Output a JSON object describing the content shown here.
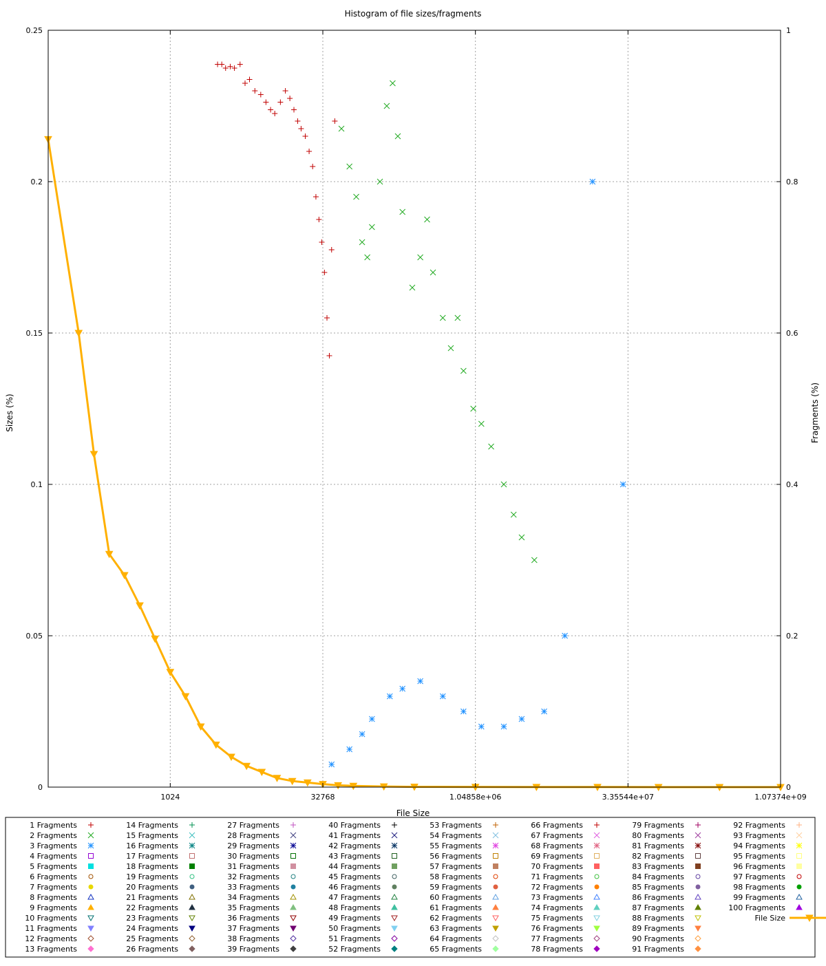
{
  "chart_data": {
    "type": "scatter",
    "title": "Histogram of file sizes/fragments",
    "xlabel": "File Size",
    "ylabel": "Sizes (%)",
    "y2label": "Fragments (%)",
    "x_scale": "log2",
    "x_ticks": [
      "1024",
      "32768",
      "1.04858e+06",
      "3.35544e+07",
      "1.07374e+09"
    ],
    "x_tick_values": [
      1024,
      32768,
      1048576,
      33554432,
      1073741824
    ],
    "xlim": [
      64,
      1073741824
    ],
    "y_ticks": [
      "0",
      "0.05",
      "0.1",
      "0.15",
      "0.2",
      "0.25"
    ],
    "ylim": [
      0,
      0.25
    ],
    "y2_ticks": [
      "0",
      "0.2",
      "0.4",
      "0.6",
      "0.8",
      "1"
    ],
    "y2lim": [
      0,
      1
    ],
    "grid": true,
    "legend_position": "bottom",
    "legend_columns": 8,
    "legend": [
      {
        "label": "1 Fragments",
        "color": "#c00000",
        "marker": "plus"
      },
      {
        "label": "2 Fragments",
        "color": "#22aa22",
        "marker": "cross"
      },
      {
        "label": "3 Fragments",
        "color": "#1e90ff",
        "marker": "star"
      },
      {
        "label": "4 Fragments",
        "color": "#9400d3",
        "marker": "square-open"
      },
      {
        "label": "5 Fragments",
        "color": "#00e0e0",
        "marker": "square"
      },
      {
        "label": "6 Fragments",
        "color": "#a05000",
        "marker": "circle-open"
      },
      {
        "label": "7 Fragments",
        "color": "#e8d800",
        "marker": "circle"
      },
      {
        "label": "8 Fragments",
        "color": "#1030c0",
        "marker": "tri-up-open"
      },
      {
        "label": "9 Fragments",
        "color": "#ffb000",
        "marker": "tri-up"
      },
      {
        "label": "10 Fragments",
        "color": "#007070",
        "marker": "tri-down-open"
      },
      {
        "label": "11 Fragments",
        "color": "#8080ff",
        "marker": "tri-down"
      },
      {
        "label": "12 Fragments",
        "color": "#a05030",
        "marker": "diamond-open"
      },
      {
        "label": "13 Fragments",
        "color": "#ff70d0",
        "marker": "diamond"
      },
      {
        "label": "14 Fragments",
        "color": "#009050",
        "marker": "plus"
      },
      {
        "label": "15 Fragments",
        "color": "#40c0c0",
        "marker": "cross"
      },
      {
        "label": "16 Fragments",
        "color": "#008080",
        "marker": "star"
      },
      {
        "label": "17 Fragments",
        "color": "#c07070",
        "marker": "square-open"
      },
      {
        "label": "18 Fragments",
        "color": "#008000",
        "marker": "square"
      },
      {
        "label": "19 Fragments",
        "color": "#30c080",
        "marker": "circle-open"
      },
      {
        "label": "20 Fragments",
        "color": "#406080",
        "marker": "circle"
      },
      {
        "label": "21 Fragments",
        "color": "#807000",
        "marker": "tri-up-open"
      },
      {
        "label": "22 Fragments",
        "color": "#203040",
        "marker": "tri-up"
      },
      {
        "label": "23 Fragments",
        "color": "#608000",
        "marker": "tri-down-open"
      },
      {
        "label": "24 Fragments",
        "color": "#000080",
        "marker": "tri-down"
      },
      {
        "label": "25 Fragments",
        "color": "#906030",
        "marker": "diamond-open"
      },
      {
        "label": "26 Fragments",
        "color": "#806060",
        "marker": "diamond"
      },
      {
        "label": "27 Fragments",
        "color": "#c050c0",
        "marker": "plus"
      },
      {
        "label": "28 Fragments",
        "color": "#404080",
        "marker": "cross"
      },
      {
        "label": "29 Fragments",
        "color": "#000090",
        "marker": "star"
      },
      {
        "label": "30 Fragments",
        "color": "#007000",
        "marker": "square-open"
      },
      {
        "label": "31 Fragments",
        "color": "#d090a0",
        "marker": "square"
      },
      {
        "label": "32 Fragments",
        "color": "#208080",
        "marker": "circle-open"
      },
      {
        "label": "33 Fragments",
        "color": "#2080a0",
        "marker": "circle"
      },
      {
        "label": "34 Fragments",
        "color": "#a09000",
        "marker": "tri-up-open"
      },
      {
        "label": "35 Fragments",
        "color": "#80c080",
        "marker": "tri-up"
      },
      {
        "label": "36 Fragments",
        "color": "#900000",
        "marker": "tri-down-open"
      },
      {
        "label": "37 Fragments",
        "color": "#700070",
        "marker": "tri-down"
      },
      {
        "label": "38 Fragments",
        "color": "#5030a0",
        "marker": "diamond-open"
      },
      {
        "label": "39 Fragments",
        "color": "#404040",
        "marker": "diamond"
      },
      {
        "label": "40 Fragments",
        "color": "#000000",
        "marker": "plus"
      },
      {
        "label": "41 Fragments",
        "color": "#202080",
        "marker": "cross"
      },
      {
        "label": "42 Fragments",
        "color": "#003060",
        "marker": "star"
      },
      {
        "label": "43 Fragments",
        "color": "#206020",
        "marker": "square-open"
      },
      {
        "label": "44 Fragments",
        "color": "#70a060",
        "marker": "square"
      },
      {
        "label": "45 Fragments",
        "color": "#406060",
        "marker": "circle-open"
      },
      {
        "label": "46 Fragments",
        "color": "#608060",
        "marker": "circle"
      },
      {
        "label": "47 Fragments",
        "color": "#208040",
        "marker": "tri-up-open"
      },
      {
        "label": "48 Fragments",
        "color": "#40c0a0",
        "marker": "tri-up"
      },
      {
        "label": "49 Fragments",
        "color": "#a02020",
        "marker": "tri-down-open"
      },
      {
        "label": "50 Fragments",
        "color": "#80d0f0",
        "marker": "tri-down"
      },
      {
        "label": "51 Fragments",
        "color": "#8000a0",
        "marker": "diamond-open"
      },
      {
        "label": "52 Fragments",
        "color": "#008080",
        "marker": "diamond"
      },
      {
        "label": "53 Fragments",
        "color": "#c06000",
        "marker": "plus"
      },
      {
        "label": "54 Fragments",
        "color": "#80c0e0",
        "marker": "cross"
      },
      {
        "label": "55 Fragments",
        "color": "#e040e0",
        "marker": "star"
      },
      {
        "label": "56 Fragments",
        "color": "#c08000",
        "marker": "square-open"
      },
      {
        "label": "57 Fragments",
        "color": "#c08060",
        "marker": "square"
      },
      {
        "label": "58 Fragments",
        "color": "#e04000",
        "marker": "circle-open"
      },
      {
        "label": "59 Fragments",
        "color": "#e06040",
        "marker": "circle"
      },
      {
        "label": "60 Fragments",
        "color": "#60a0e0",
        "marker": "tri-up-open"
      },
      {
        "label": "61 Fragments",
        "color": "#ff8040",
        "marker": "tri-up"
      },
      {
        "label": "62 Fragments",
        "color": "#ff6060",
        "marker": "tri-down-open"
      },
      {
        "label": "63 Fragments",
        "color": "#c0a000",
        "marker": "tri-down"
      },
      {
        "label": "64 Fragments",
        "color": "#c0c0c0",
        "marker": "diamond-open"
      },
      {
        "label": "65 Fragments",
        "color": "#a0ffa0",
        "marker": "diamond"
      },
      {
        "label": "66 Fragments",
        "color": "#c00000",
        "marker": "plus"
      },
      {
        "label": "67 Fragments",
        "color": "#e060e0",
        "marker": "cross"
      },
      {
        "label": "68 Fragments",
        "color": "#e06080",
        "marker": "star"
      },
      {
        "label": "69 Fragments",
        "color": "#e0b060",
        "marker": "square-open"
      },
      {
        "label": "70 Fragments",
        "color": "#ff6060",
        "marker": "square"
      },
      {
        "label": "71 Fragments",
        "color": "#40c040",
        "marker": "circle-open"
      },
      {
        "label": "72 Fragments",
        "color": "#ff8000",
        "marker": "circle"
      },
      {
        "label": "73 Fragments",
        "color": "#4080ff",
        "marker": "tri-up-open"
      },
      {
        "label": "74 Fragments",
        "color": "#60d0c0",
        "marker": "tri-up"
      },
      {
        "label": "75 Fragments",
        "color": "#80d0e0",
        "marker": "tri-down-open"
      },
      {
        "label": "76 Fragments",
        "color": "#a0ff40",
        "marker": "tri-down"
      },
      {
        "label": "77 Fragments",
        "color": "#a04080",
        "marker": "diamond-open"
      },
      {
        "label": "78 Fragments",
        "color": "#a000c0",
        "marker": "diamond"
      },
      {
        "label": "79 Fragments",
        "color": "#a00060",
        "marker": "plus"
      },
      {
        "label": "80 Fragments",
        "color": "#a040a0",
        "marker": "cross"
      },
      {
        "label": "81 Fragments",
        "color": "#800000",
        "marker": "star"
      },
      {
        "label": "82 Fragments",
        "color": "#604040",
        "marker": "square-open"
      },
      {
        "label": "83 Fragments",
        "color": "#804020",
        "marker": "square"
      },
      {
        "label": "84 Fragments",
        "color": "#6040a0",
        "marker": "circle-open"
      },
      {
        "label": "85 Fragments",
        "color": "#8060a0",
        "marker": "circle"
      },
      {
        "label": "86 Fragments",
        "color": "#6040c0",
        "marker": "tri-up-open"
      },
      {
        "label": "87 Fragments",
        "color": "#608000",
        "marker": "tri-up"
      },
      {
        "label": "88 Fragments",
        "color": "#c0c000",
        "marker": "tri-down-open"
      },
      {
        "label": "89 Fragments",
        "color": "#ff8040",
        "marker": "tri-down"
      },
      {
        "label": "90 Fragments",
        "color": "#ffa040",
        "marker": "diamond-open"
      },
      {
        "label": "91 Fragments",
        "color": "#ff9040",
        "marker": "diamond"
      },
      {
        "label": "92 Fragments",
        "color": "#ffb080",
        "marker": "plus"
      },
      {
        "label": "93 Fragments",
        "color": "#ffd0a0",
        "marker": "cross"
      },
      {
        "label": "94 Fragments",
        "color": "#ffff00",
        "marker": "star"
      },
      {
        "label": "95 Fragments",
        "color": "#ffff80",
        "marker": "square-open"
      },
      {
        "label": "96 Fragments",
        "color": "#ffffa0",
        "marker": "square"
      },
      {
        "label": "97 Fragments",
        "color": "#c00000",
        "marker": "circle-open"
      },
      {
        "label": "98 Fragments",
        "color": "#00a000",
        "marker": "circle"
      },
      {
        "label": "99 Fragments",
        "color": "#2060a0",
        "marker": "tri-up-open"
      },
      {
        "label": "100 Fragments",
        "color": "#a000e0",
        "marker": "tri-up"
      },
      {
        "label": "File Size",
        "color": "#ffb000",
        "marker": "line-tri-down"
      }
    ],
    "series": [
      {
        "name": "File Size",
        "axis": "y",
        "color": "#ffb000",
        "x": [
          64,
          128,
          181,
          256,
          362,
          512,
          724,
          1024,
          1448,
          2048,
          2896,
          4096,
          5793,
          8192,
          11585,
          16384,
          23170,
          32768,
          46341,
          65536,
          131072,
          262144,
          1048576,
          4194304,
          16777216,
          67108864,
          268435456,
          1073741824
        ],
        "y": [
          0.214,
          0.15,
          0.11,
          0.077,
          0.07,
          0.06,
          0.049,
          0.038,
          0.03,
          0.02,
          0.014,
          0.01,
          0.007,
          0.005,
          0.003,
          0.002,
          0.0015,
          0.001,
          0.0006,
          0.0004,
          0.0002,
          0.0001,
          5e-05,
          3e-05,
          2e-05,
          1e-05,
          5e-06,
          0
        ]
      },
      {
        "name": "1 Fragments",
        "axis": "y2",
        "color": "#c00000",
        "x": [
          3000,
          3300,
          3600,
          4000,
          4400,
          5000,
          5600,
          6200,
          7000,
          8000,
          9000,
          10000,
          11000,
          12500,
          14000,
          15500,
          17000,
          18500,
          20000,
          22000,
          24000,
          26000,
          28000,
          30000,
          32000,
          34000,
          36000,
          38000,
          40000,
          43000
        ],
        "y": [
          0.955,
          0.955,
          0.95,
          0.952,
          0.95,
          0.955,
          0.93,
          0.935,
          0.92,
          0.915,
          0.905,
          0.895,
          0.89,
          0.905,
          0.92,
          0.91,
          0.895,
          0.88,
          0.87,
          0.86,
          0.84,
          0.82,
          0.78,
          0.75,
          0.72,
          0.68,
          0.62,
          0.57,
          0.71,
          0.88
        ]
      },
      {
        "name": "2 Fragments",
        "axis": "y2",
        "color": "#22aa22",
        "x": [
          50000,
          60000,
          70000,
          80000,
          90000,
          100000,
          120000,
          140000,
          160000,
          180000,
          200000,
          250000,
          300000,
          350000,
          400000,
          500000,
          600000,
          700000,
          800000,
          1000000,
          1200000,
          1500000,
          2000000,
          2500000,
          3000000,
          4000000
        ],
        "y": [
          0.87,
          0.82,
          0.78,
          0.72,
          0.7,
          0.74,
          0.8,
          0.9,
          0.93,
          0.86,
          0.76,
          0.66,
          0.7,
          0.75,
          0.68,
          0.62,
          0.58,
          0.62,
          0.55,
          0.5,
          0.48,
          0.45,
          0.4,
          0.36,
          0.33,
          0.3
        ]
      },
      {
        "name": "3 Fragments",
        "axis": "y2",
        "color": "#1e90ff",
        "x": [
          40000,
          60000,
          80000,
          100000,
          150000,
          200000,
          300000,
          500000,
          800000,
          1200000,
          2000000,
          3000000,
          5000000,
          8000000,
          15000000,
          30000000
        ],
        "y": [
          0.03,
          0.05,
          0.07,
          0.09,
          0.12,
          0.13,
          0.14,
          0.12,
          0.1,
          0.08,
          0.08,
          0.09,
          0.1,
          0.2,
          0.8,
          0.4
        ]
      }
    ]
  }
}
